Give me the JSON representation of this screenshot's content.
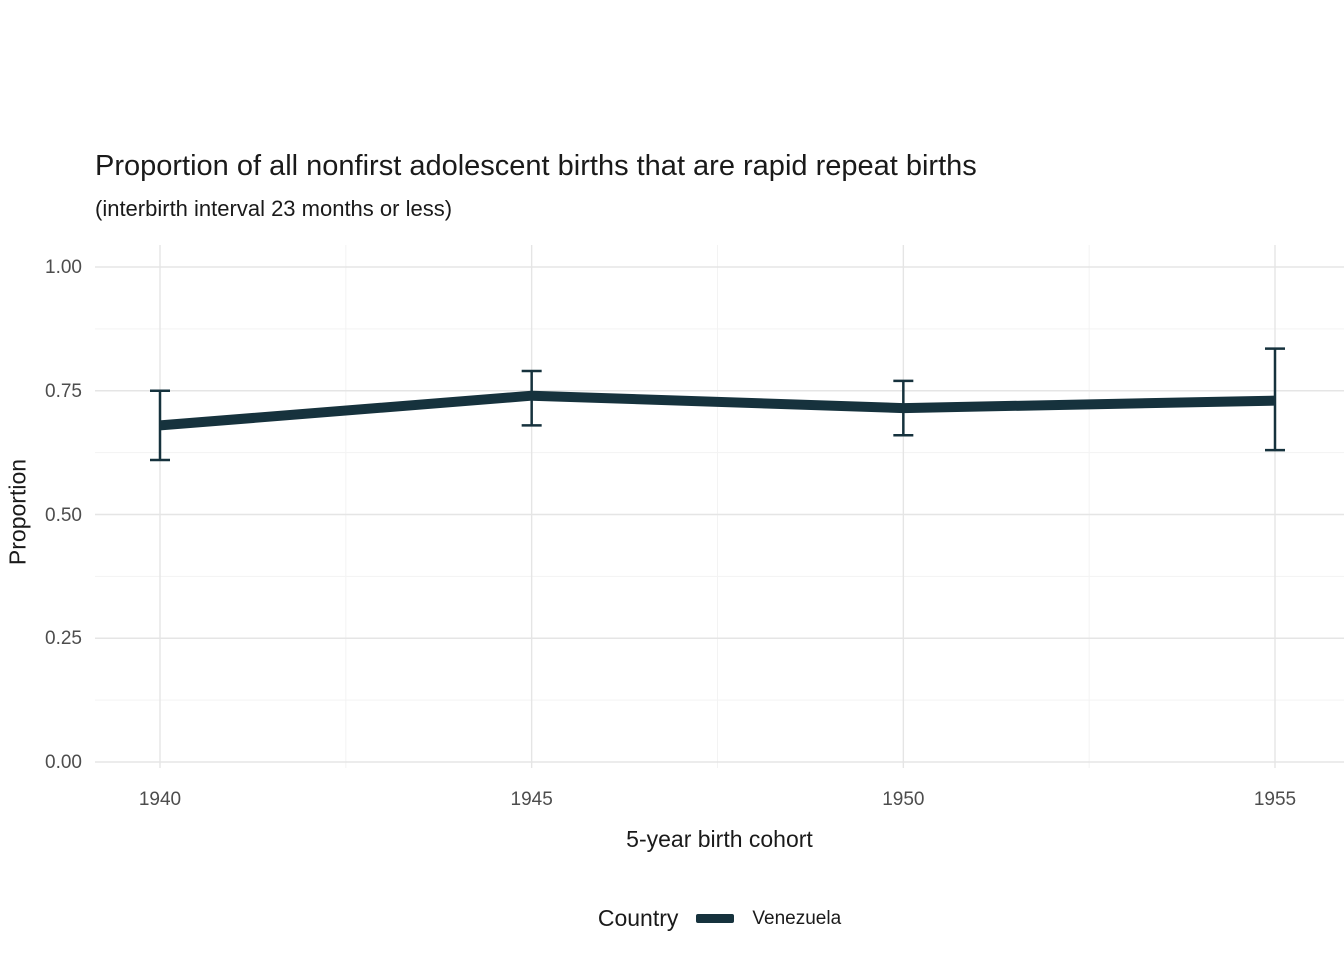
{
  "chart_data": {
    "type": "line",
    "title": "Proportion of all nonfirst adolescent births that are rapid repeat births",
    "subtitle": "(interbirth interval 23 months or less)",
    "xlabel": "5-year birth cohort",
    "ylabel": "Proportion",
    "legend_title": "Country",
    "legend_position": "bottom",
    "grid": true,
    "x_ticks": [
      1940,
      1945,
      1950,
      1955
    ],
    "x_tick_labels": [
      "1940",
      "1945",
      "1950",
      "1955"
    ],
    "y_ticks": [
      0.0,
      0.25,
      0.5,
      0.75,
      1.0
    ],
    "y_tick_labels": [
      "0.00",
      "0.25",
      "0.50",
      "0.75",
      "1.00"
    ],
    "y_minor_ticks": [
      0.125,
      0.375,
      0.625,
      0.875
    ],
    "x_minor_ticks": [
      1942.5,
      1947.5,
      1952.5
    ],
    "ylim": [
      0,
      1
    ],
    "series": [
      {
        "name": "Venezuela",
        "color": "#16323d",
        "x": [
          1940,
          1945,
          1950,
          1955
        ],
        "y": [
          0.68,
          0.74,
          0.715,
          0.73
        ],
        "ci_low": [
          0.61,
          0.68,
          0.66,
          0.63
        ],
        "ci_high": [
          0.75,
          0.79,
          0.77,
          0.835
        ]
      }
    ]
  }
}
